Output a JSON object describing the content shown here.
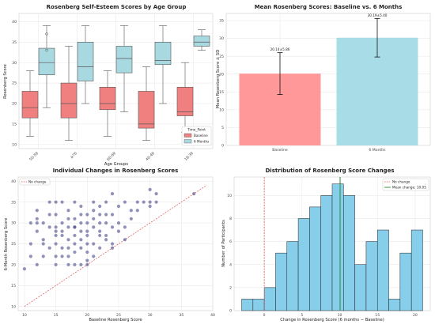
{
  "chart_data": [
    {
      "type": "box",
      "title": "Rosenberg Self-Esteem Scores by Age Group",
      "xlabel": "Age Groups",
      "ylabel": "Rosenberg Score",
      "categories": [
        "50-59",
        "≥70",
        "60-69",
        "40-49",
        "18-39"
      ],
      "ylim": [
        9,
        42
      ],
      "yticks": [
        10,
        15,
        20,
        25,
        30,
        35,
        40
      ],
      "legend": {
        "title": "Time_Point",
        "position": "lower-right",
        "entries": [
          "Baseline",
          "6 Months"
        ]
      },
      "series": [
        {
          "name": "Baseline",
          "color": "#f08080",
          "boxes": [
            {
              "whisker_low": 12,
              "q1": 16.5,
              "median": 19,
              "q3": 23,
              "whisker_high": 28
            },
            {
              "whisker_low": 11,
              "q1": 16.5,
              "median": 20,
              "q3": 25,
              "whisker_high": 34
            },
            {
              "whisker_low": 12,
              "q1": 18.5,
              "median": 20,
              "q3": 24,
              "whisker_high": 28
            },
            {
              "whisker_low": 11,
              "q1": 14,
              "median": 15,
              "q3": 23,
              "whisker_high": 29
            },
            {
              "whisker_low": 13,
              "q1": 17,
              "median": 18,
              "q3": 24,
              "whisker_high": 30
            }
          ],
          "outliers": []
        },
        {
          "name": "6 Months",
          "color": "#a8d8e0",
          "boxes": [
            {
              "whisker_low": 19,
              "q1": 27,
              "median": 30,
              "q3": 33.5,
              "whisker_high": 39
            },
            {
              "whisker_low": 20,
              "q1": 25.5,
              "median": 29,
              "q3": 35,
              "whisker_high": 39
            },
            {
              "whisker_low": 18,
              "q1": 27.5,
              "median": 31,
              "q3": 34,
              "whisker_high": 39
            },
            {
              "whisker_low": 20,
              "q1": 29.5,
              "median": 30.5,
              "q3": 35,
              "whisker_high": 39
            },
            {
              "whisker_low": 33,
              "q1": 34,
              "median": 35,
              "q3": 36.5,
              "whisker_high": 38
            }
          ],
          "outliers": [
            [
              0,
              37
            ],
            [
              0,
              33
            ]
          ]
        }
      ]
    },
    {
      "type": "bar",
      "title": "Mean Rosenberg Scores: Baseline vs. 6 Months",
      "xlabel": "",
      "ylabel": "Mean Rosenberg Score ± SD",
      "categories": [
        "Baseline",
        "6 Months"
      ],
      "values": [
        20.14,
        30.19
      ],
      "sd": [
        5.86,
        5.4
      ],
      "value_labels": [
        "20.14±5.86",
        "30.19±5.40"
      ],
      "colors": [
        "#ff9999",
        "#a8dde8"
      ],
      "ylim": [
        0,
        37
      ],
      "yticks": [
        0,
        5,
        10,
        15,
        20,
        25,
        30,
        35
      ]
    },
    {
      "type": "scatter",
      "title": "Individual Changes in Rosenberg Scores",
      "xlabel": "Baseline Rosenberg Score",
      "ylabel": "6-Month Rosenberg Score",
      "xlim": [
        9,
        40
      ],
      "ylim": [
        9,
        41
      ],
      "xticks": [
        10,
        15,
        20,
        25,
        30,
        35,
        40
      ],
      "yticks": [
        10,
        15,
        20,
        25,
        30,
        35,
        40
      ],
      "legend": {
        "position": "top-left",
        "entries": [
          "No change"
        ]
      },
      "reference_line": {
        "name": "No change",
        "from": [
          10,
          10
        ],
        "to": [
          39,
          39
        ]
      },
      "points": [
        [
          10,
          19
        ],
        [
          11,
          25
        ],
        [
          11,
          22
        ],
        [
          12,
          20
        ],
        [
          12,
          31
        ],
        [
          12,
          33
        ],
        [
          12,
          30
        ],
        [
          13,
          22
        ],
        [
          13,
          26
        ],
        [
          13,
          30
        ],
        [
          14,
          24
        ],
        [
          14,
          29
        ],
        [
          14,
          32
        ],
        [
          15,
          35
        ],
        [
          15,
          29
        ],
        [
          15,
          28
        ],
        [
          15,
          27
        ],
        [
          15,
          25
        ],
        [
          15,
          22
        ],
        [
          15,
          20
        ],
        [
          15,
          32
        ],
        [
          16,
          35
        ],
        [
          16,
          30
        ],
        [
          16,
          24
        ],
        [
          16,
          22
        ],
        [
          16,
          28
        ],
        [
          17,
          31
        ],
        [
          17,
          26
        ],
        [
          17,
          24
        ],
        [
          17,
          22
        ],
        [
          17,
          29
        ],
        [
          17,
          33
        ],
        [
          18,
          35
        ],
        [
          18,
          31
        ],
        [
          18,
          27
        ],
        [
          18,
          25
        ],
        [
          18,
          23
        ],
        [
          18,
          20
        ],
        [
          18,
          29
        ],
        [
          19,
          34
        ],
        [
          19,
          32
        ],
        [
          19,
          30
        ],
        [
          19,
          26
        ],
        [
          19,
          24
        ],
        [
          19,
          20
        ],
        [
          20,
          32
        ],
        [
          20,
          30
        ],
        [
          20,
          28
        ],
        [
          20,
          27
        ],
        [
          20,
          25
        ],
        [
          20,
          23
        ],
        [
          20,
          21
        ],
        [
          20,
          20
        ],
        [
          21,
          35
        ],
        [
          21,
          33
        ],
        [
          21,
          31
        ],
        [
          21,
          29
        ],
        [
          21,
          25
        ],
        [
          21,
          22
        ],
        [
          22,
          30
        ],
        [
          22,
          28
        ],
        [
          22,
          27
        ],
        [
          22,
          24
        ],
        [
          22,
          34
        ],
        [
          23,
          35
        ],
        [
          23,
          32
        ],
        [
          23,
          27
        ],
        [
          23,
          30
        ],
        [
          24,
          37
        ],
        [
          24,
          32
        ],
        [
          24,
          29
        ],
        [
          24,
          24
        ],
        [
          24,
          25
        ],
        [
          25,
          34
        ],
        [
          25,
          30
        ],
        [
          25,
          28
        ],
        [
          26,
          35
        ],
        [
          26,
          29
        ],
        [
          26,
          26
        ],
        [
          27,
          33
        ],
        [
          27,
          31
        ],
        [
          28,
          35
        ],
        [
          28,
          33
        ],
        [
          29,
          35
        ],
        [
          30,
          35
        ],
        [
          30,
          38
        ],
        [
          30,
          34
        ],
        [
          31,
          37
        ],
        [
          31,
          35
        ],
        [
          37,
          37
        ],
        [
          14,
          35
        ],
        [
          18,
          29
        ],
        [
          16,
          27
        ],
        [
          19,
          28
        ],
        [
          13,
          25
        ],
        [
          17,
          20
        ],
        [
          11,
          30
        ],
        [
          23,
          26
        ],
        [
          22,
          32
        ],
        [
          12,
          28
        ]
      ]
    },
    {
      "type": "histogram",
      "title": "Distribution of Rosenberg Score Changes",
      "xlabel": "Change in Rosenberg Score (6 months − Baseline)",
      "ylabel": "Number of Participants",
      "bin_edges": [
        -3,
        -1.5,
        0,
        1.5,
        3,
        4.5,
        6,
        7.5,
        9,
        10.5,
        12,
        13.5,
        15,
        16.5,
        18,
        19.5,
        21
      ],
      "counts": [
        1,
        1,
        2,
        5,
        6,
        8,
        9,
        10,
        11,
        10,
        4,
        6,
        7,
        1,
        5,
        7
      ],
      "xlim": [
        -4,
        22
      ],
      "ylim": [
        0,
        11.6
      ],
      "xticks": [
        0,
        5,
        10,
        15,
        20
      ],
      "yticks": [
        0,
        2,
        4,
        6,
        8,
        10
      ],
      "legend": {
        "position": "top-right",
        "entries": [
          "No change",
          "Mean change: 10.05"
        ]
      },
      "vlines": [
        {
          "name": "No change",
          "x": 0
        },
        {
          "name": "Mean change: 10.05",
          "x": 10.05
        }
      ]
    }
  ]
}
